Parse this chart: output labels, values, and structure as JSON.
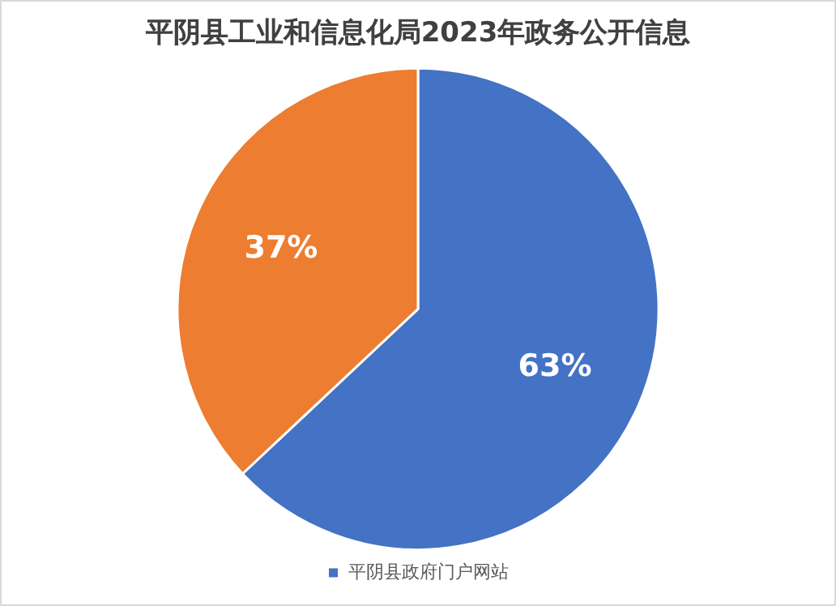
{
  "chart_data": {
    "type": "pie",
    "title": "平阴县工业和信息化局2023年政务公开信息",
    "categories": [
      "平阴县政府门户网站",
      null
    ],
    "values": [
      63,
      37
    ],
    "colors": [
      "#4472c4",
      "#ed7d31"
    ],
    "value_labels": [
      "63%",
      "37%"
    ],
    "legend": "bottom"
  }
}
